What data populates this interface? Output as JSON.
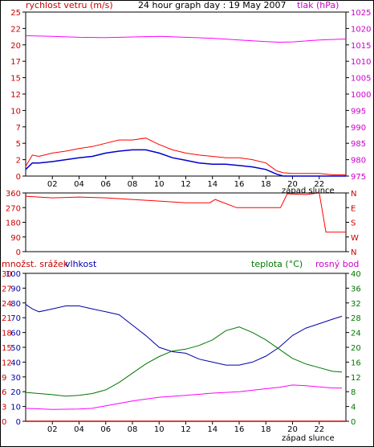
{
  "chart_data": [
    {
      "type": "line",
      "title": "24 hour graph day : 19 May 2007",
      "left_label": "rychlost vetru (m/s)",
      "right_label": "tlak (hPa)",
      "annotation": "západ slunce",
      "x_ticks": [
        "02",
        "04",
        "06",
        "08",
        "10",
        "12",
        "14",
        "16",
        "18",
        "20",
        "22"
      ],
      "left_ticks": [
        "0",
        "2.5",
        "5",
        "7.5",
        "10",
        "12.5",
        "15",
        "17.5",
        "20",
        "22.5",
        "25"
      ],
      "left_ticks_display": [
        "0",
        "2",
        "5",
        "7",
        "10",
        "12",
        "15",
        "17",
        "20",
        "22",
        "25"
      ],
      "right_ticks": [
        "975",
        "980",
        "985",
        "990",
        "995",
        "1000",
        "1005",
        "1010",
        "1015",
        "1020",
        "1025"
      ],
      "xlim": [
        0,
        24
      ],
      "ylim": [
        0,
        25
      ],
      "ylim_right": [
        975,
        1025
      ],
      "colors": {
        "gust": "#ff0000",
        "wind": "#0000cc",
        "pressure": "#ff00ff",
        "left_axis": "#cc0000",
        "right_axis": "#cc00cc"
      },
      "series": [
        {
          "key": "pressure",
          "axis": "right",
          "x": [
            0,
            2,
            4,
            6,
            8,
            10,
            12,
            14,
            16,
            18,
            19,
            20,
            22,
            24
          ],
          "values": [
            1017.8,
            1017.6,
            1017.3,
            1017.2,
            1017.4,
            1017.6,
            1017.3,
            1017.0,
            1016.5,
            1016.0,
            1015.8,
            1015.9,
            1016.5,
            1016.8
          ]
        },
        {
          "key": "gust",
          "axis": "left",
          "x": [
            0,
            0.5,
            1,
            2,
            3,
            4,
            5,
            6,
            7,
            8,
            9,
            10,
            11,
            12,
            13,
            14,
            15,
            16,
            17,
            18,
            18.8,
            19.3,
            20,
            21,
            22,
            23,
            24
          ],
          "values": [
            1.5,
            3.2,
            3.0,
            3.5,
            3.8,
            4.2,
            4.5,
            5.0,
            5.5,
            5.5,
            5.8,
            4.8,
            4.0,
            3.5,
            3.2,
            3.0,
            2.8,
            2.8,
            2.5,
            2.0,
            0.8,
            0.5,
            0.4,
            0.4,
            0.4,
            0.2,
            0.2
          ]
        },
        {
          "key": "wind",
          "axis": "left",
          "x": [
            0,
            0.5,
            1,
            2,
            3,
            4,
            5,
            6,
            7,
            8,
            9,
            10,
            11,
            12,
            13,
            14,
            15,
            16,
            17,
            18,
            18.8,
            19.3,
            20,
            24
          ],
          "values": [
            1.0,
            2.0,
            2.0,
            2.2,
            2.5,
            2.8,
            3.0,
            3.5,
            3.8,
            4.0,
            4.0,
            3.5,
            2.8,
            2.4,
            2.0,
            1.8,
            1.8,
            1.6,
            1.4,
            1.0,
            0.3,
            0,
            0,
            0
          ]
        }
      ]
    },
    {
      "type": "line",
      "left_ticks": [
        "0",
        "90",
        "180",
        "270",
        "360"
      ],
      "right_ticks": [
        "N",
        "W",
        "S",
        "E",
        "N"
      ],
      "xlim": [
        0,
        24
      ],
      "ylim": [
        0,
        360
      ],
      "colors": {
        "direction": "#ff0000",
        "left_axis": "#cc0000",
        "right_axis": "#cc0000"
      },
      "series": [
        {
          "key": "direction",
          "x": [
            0,
            2,
            4,
            6,
            8,
            10,
            12,
            13.8,
            14.2,
            15.8,
            16.2,
            19.1,
            19.6,
            21,
            22,
            22.5,
            24
          ],
          "values": [
            340,
            330,
            335,
            330,
            320,
            310,
            300,
            300,
            320,
            270,
            270,
            270,
            355,
            350,
            360,
            120,
            120
          ]
        }
      ]
    },
    {
      "type": "line",
      "left_label": "množst. srážek",
      "left_label_2": "vlhkost",
      "right_label_1": "teplota (°C)",
      "right_label_2": "rosný bod",
      "annotation": "západ slunce",
      "x_ticks": [
        "02",
        "04",
        "06",
        "08",
        "10",
        "12",
        "14",
        "16",
        "18",
        "20",
        "22"
      ],
      "precip_ticks": [
        "0",
        "3",
        "6",
        "9",
        "12",
        "15",
        "18",
        "21",
        "24",
        "27",
        "30"
      ],
      "humidity_ticks": [
        "0",
        "10",
        "20",
        "30",
        "40",
        "50",
        "60",
        "70",
        "80",
        "90",
        "100"
      ],
      "humidity_ticks_display": [
        "0",
        "10",
        "20",
        "30",
        "40",
        "50",
        "60",
        "70",
        "80",
        "90",
        "100"
      ],
      "precip_left_ticks_display": [
        "0",
        "3",
        "6",
        "9",
        "12",
        "15",
        "18",
        "21",
        "24",
        "27",
        "30"
      ],
      "left_ticks_display": [
        "0",
        "10",
        "20",
        "30",
        "40",
        "50",
        "60",
        "70",
        "80",
        "90",
        "100"
      ],
      "outer_left_ticks": [
        "0",
        "3",
        "6",
        "9",
        "12",
        "15",
        "18",
        "21",
        "24",
        "27",
        "30"
      ],
      "right_ticks": [
        "0",
        "4",
        "8",
        "12",
        "16",
        "20",
        "24",
        "28",
        "32",
        "36",
        "40"
      ],
      "xlim": [
        0,
        24
      ],
      "ylim_humidity": [
        0,
        100
      ],
      "ylim_temp": [
        0,
        40
      ],
      "colors": {
        "humidity": "#0000aa",
        "temperature": "#007700",
        "dewpoint": "#ff00ff",
        "precip": "#cc0000",
        "precip_axis": "#cc0000",
        "humidity_axis": "#0000aa",
        "temp_axis": "#007700"
      },
      "series": [
        {
          "key": "humidity",
          "axis": "humidity",
          "x": [
            0,
            0.5,
            1,
            2,
            3,
            4,
            5,
            6,
            7,
            8,
            9,
            10,
            11,
            12,
            13,
            14,
            15,
            16,
            17,
            18,
            19,
            20,
            21,
            22,
            23,
            23.7
          ],
          "values": [
            79,
            76,
            74,
            76,
            78,
            78,
            76,
            74,
            72,
            65,
            58,
            50,
            47,
            46,
            42,
            40,
            38,
            38,
            40,
            44,
            50,
            58,
            63,
            66,
            69,
            71
          ]
        },
        {
          "key": "temperature",
          "axis": "temp",
          "x": [
            0,
            1,
            2,
            3,
            4,
            5,
            6,
            7,
            8,
            9,
            10,
            11,
            12,
            13,
            14,
            15,
            16,
            17,
            18,
            19,
            20,
            21,
            22,
            23,
            23.7
          ],
          "values": [
            7.8,
            7.5,
            7.2,
            6.8,
            7.0,
            7.5,
            8.5,
            10.5,
            13,
            15.5,
            17.5,
            19,
            19.5,
            20.5,
            22,
            24.5,
            25.5,
            24,
            22,
            19.5,
            17,
            15.5,
            14.5,
            13.5,
            13.3
          ]
        },
        {
          "key": "dewpoint",
          "axis": "temp",
          "x": [
            0,
            2,
            4,
            5,
            6,
            8,
            10,
            12,
            14,
            16,
            18,
            19,
            20,
            21,
            22,
            23,
            23.7
          ],
          "values": [
            3.5,
            3.2,
            3.3,
            3.5,
            4.2,
            5.5,
            6.5,
            7.0,
            7.6,
            8.0,
            8.8,
            9.2,
            9.8,
            9.6,
            9.3,
            9.0,
            9.0
          ]
        },
        {
          "key": "precip",
          "axis": "precip",
          "x": [
            0,
            24
          ],
          "values": [
            0,
            0
          ]
        }
      ]
    }
  ]
}
